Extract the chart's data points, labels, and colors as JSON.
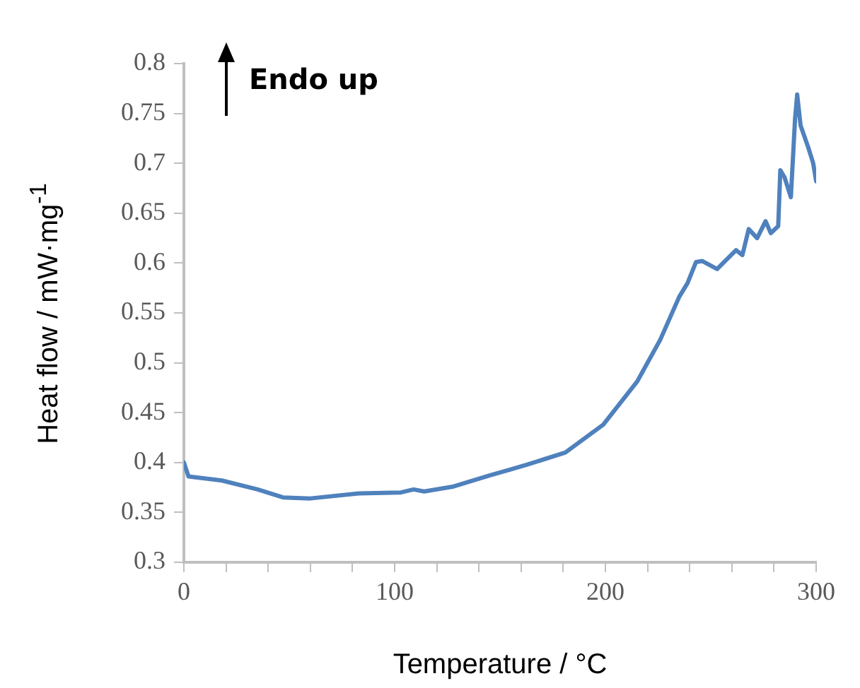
{
  "chart_data": {
    "type": "line",
    "xlabel": "Temperature / °C",
    "ylabel": "Heat flow / mW·mg$^{-1}$",
    "annotations": [
      "Endo up"
    ],
    "x": [
      0,
      2.2,
      18,
      35,
      47,
      60,
      83,
      103,
      109,
      114,
      128,
      145,
      155,
      163,
      181,
      199,
      215,
      226,
      235,
      239,
      243,
      246,
      253,
      262,
      265,
      268,
      272,
      276,
      278.5,
      282,
      283,
      285,
      288,
      290,
      291,
      292.6,
      296.4,
      298.6,
      300
    ],
    "series": [
      {
        "color": "#4f81bd",
        "values": [
          0.4,
          0.386,
          0.382,
          0.373,
          0.365,
          0.364,
          0.369,
          0.37,
          0.373,
          0.371,
          0.376,
          0.387,
          0.393,
          0.398,
          0.41,
          0.438,
          0.481,
          0.523,
          0.566,
          0.58,
          0.601,
          0.602,
          0.594,
          0.613,
          0.608,
          0.634,
          0.625,
          0.642,
          0.63,
          0.637,
          0.693,
          0.686,
          0.666,
          0.745,
          0.769,
          0.738,
          0.715,
          0.7,
          0.682
        ]
      }
    ],
    "xlim": [
      0,
      300
    ],
    "xticks": [
      0,
      {
        "value": 20,
        "label": null
      },
      {
        "value": 40,
        "label": null
      },
      {
        "value": 60,
        "label": null
      },
      {
        "value": 80,
        "label": null
      },
      100,
      {
        "value": 120,
        "label": null
      },
      {
        "value": 140,
        "label": null
      },
      {
        "value": 160,
        "label": null
      },
      {
        "value": 180,
        "label": null
      },
      200,
      {
        "value": 220,
        "label": null
      },
      {
        "value": 240,
        "label": null
      },
      {
        "value": 260,
        "label": null
      },
      {
        "value": 280,
        "label": null
      },
      300
    ],
    "ylim": [
      0.3,
      0.8
    ],
    "yticks": [
      0.3,
      0.35,
      0.4,
      0.45,
      0.5,
      0.55,
      0.6,
      0.65,
      0.7,
      0.75,
      0.8
    ],
    "grid": false,
    "legend": false,
    "marker": "none",
    "line_style": "solid"
  }
}
